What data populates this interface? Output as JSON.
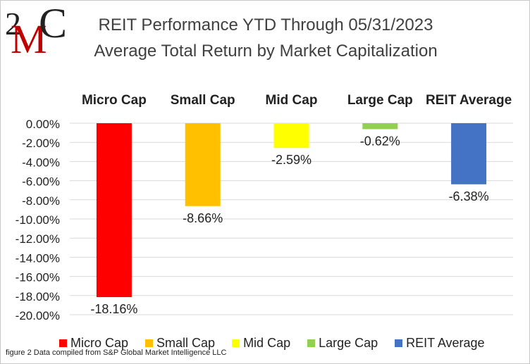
{
  "logo": {
    "text_top": "2",
    "text_mid": "M",
    "text_right": "C"
  },
  "chart_data": {
    "type": "bar",
    "title": "REIT Performance YTD Through 05/31/2023",
    "subtitle": "Average Total Return by Market Capitalization",
    "categories": [
      "Micro Cap",
      "Small Cap",
      "Mid Cap",
      "Large Cap",
      "REIT Average"
    ],
    "values": [
      -18.16,
      -8.66,
      -2.59,
      -0.62,
      -6.38
    ],
    "value_labels": [
      "-18.16%",
      "-8.66%",
      "-2.59%",
      "-0.62%",
      "-6.38%"
    ],
    "colors": [
      "#FF0000",
      "#FFC000",
      "#FFFF00",
      "#92D050",
      "#4472C4"
    ],
    "ylim": [
      -20,
      0
    ],
    "yticks": [
      0,
      -2,
      -4,
      -6,
      -8,
      -10,
      -12,
      -14,
      -16,
      -18,
      -20
    ],
    "ytick_labels": [
      "0.00%",
      "-2.00%",
      "-4.00%",
      "-6.00%",
      "-8.00%",
      "-10.00%",
      "-12.00%",
      "-14.00%",
      "-16.00%",
      "-18.00%",
      "-20.00%"
    ],
    "grid": true,
    "legend": "bottom",
    "xlabel": "",
    "ylabel": ""
  },
  "footnote": "figure 2 Data compiled from S&P Global Market Intelligence LLC"
}
